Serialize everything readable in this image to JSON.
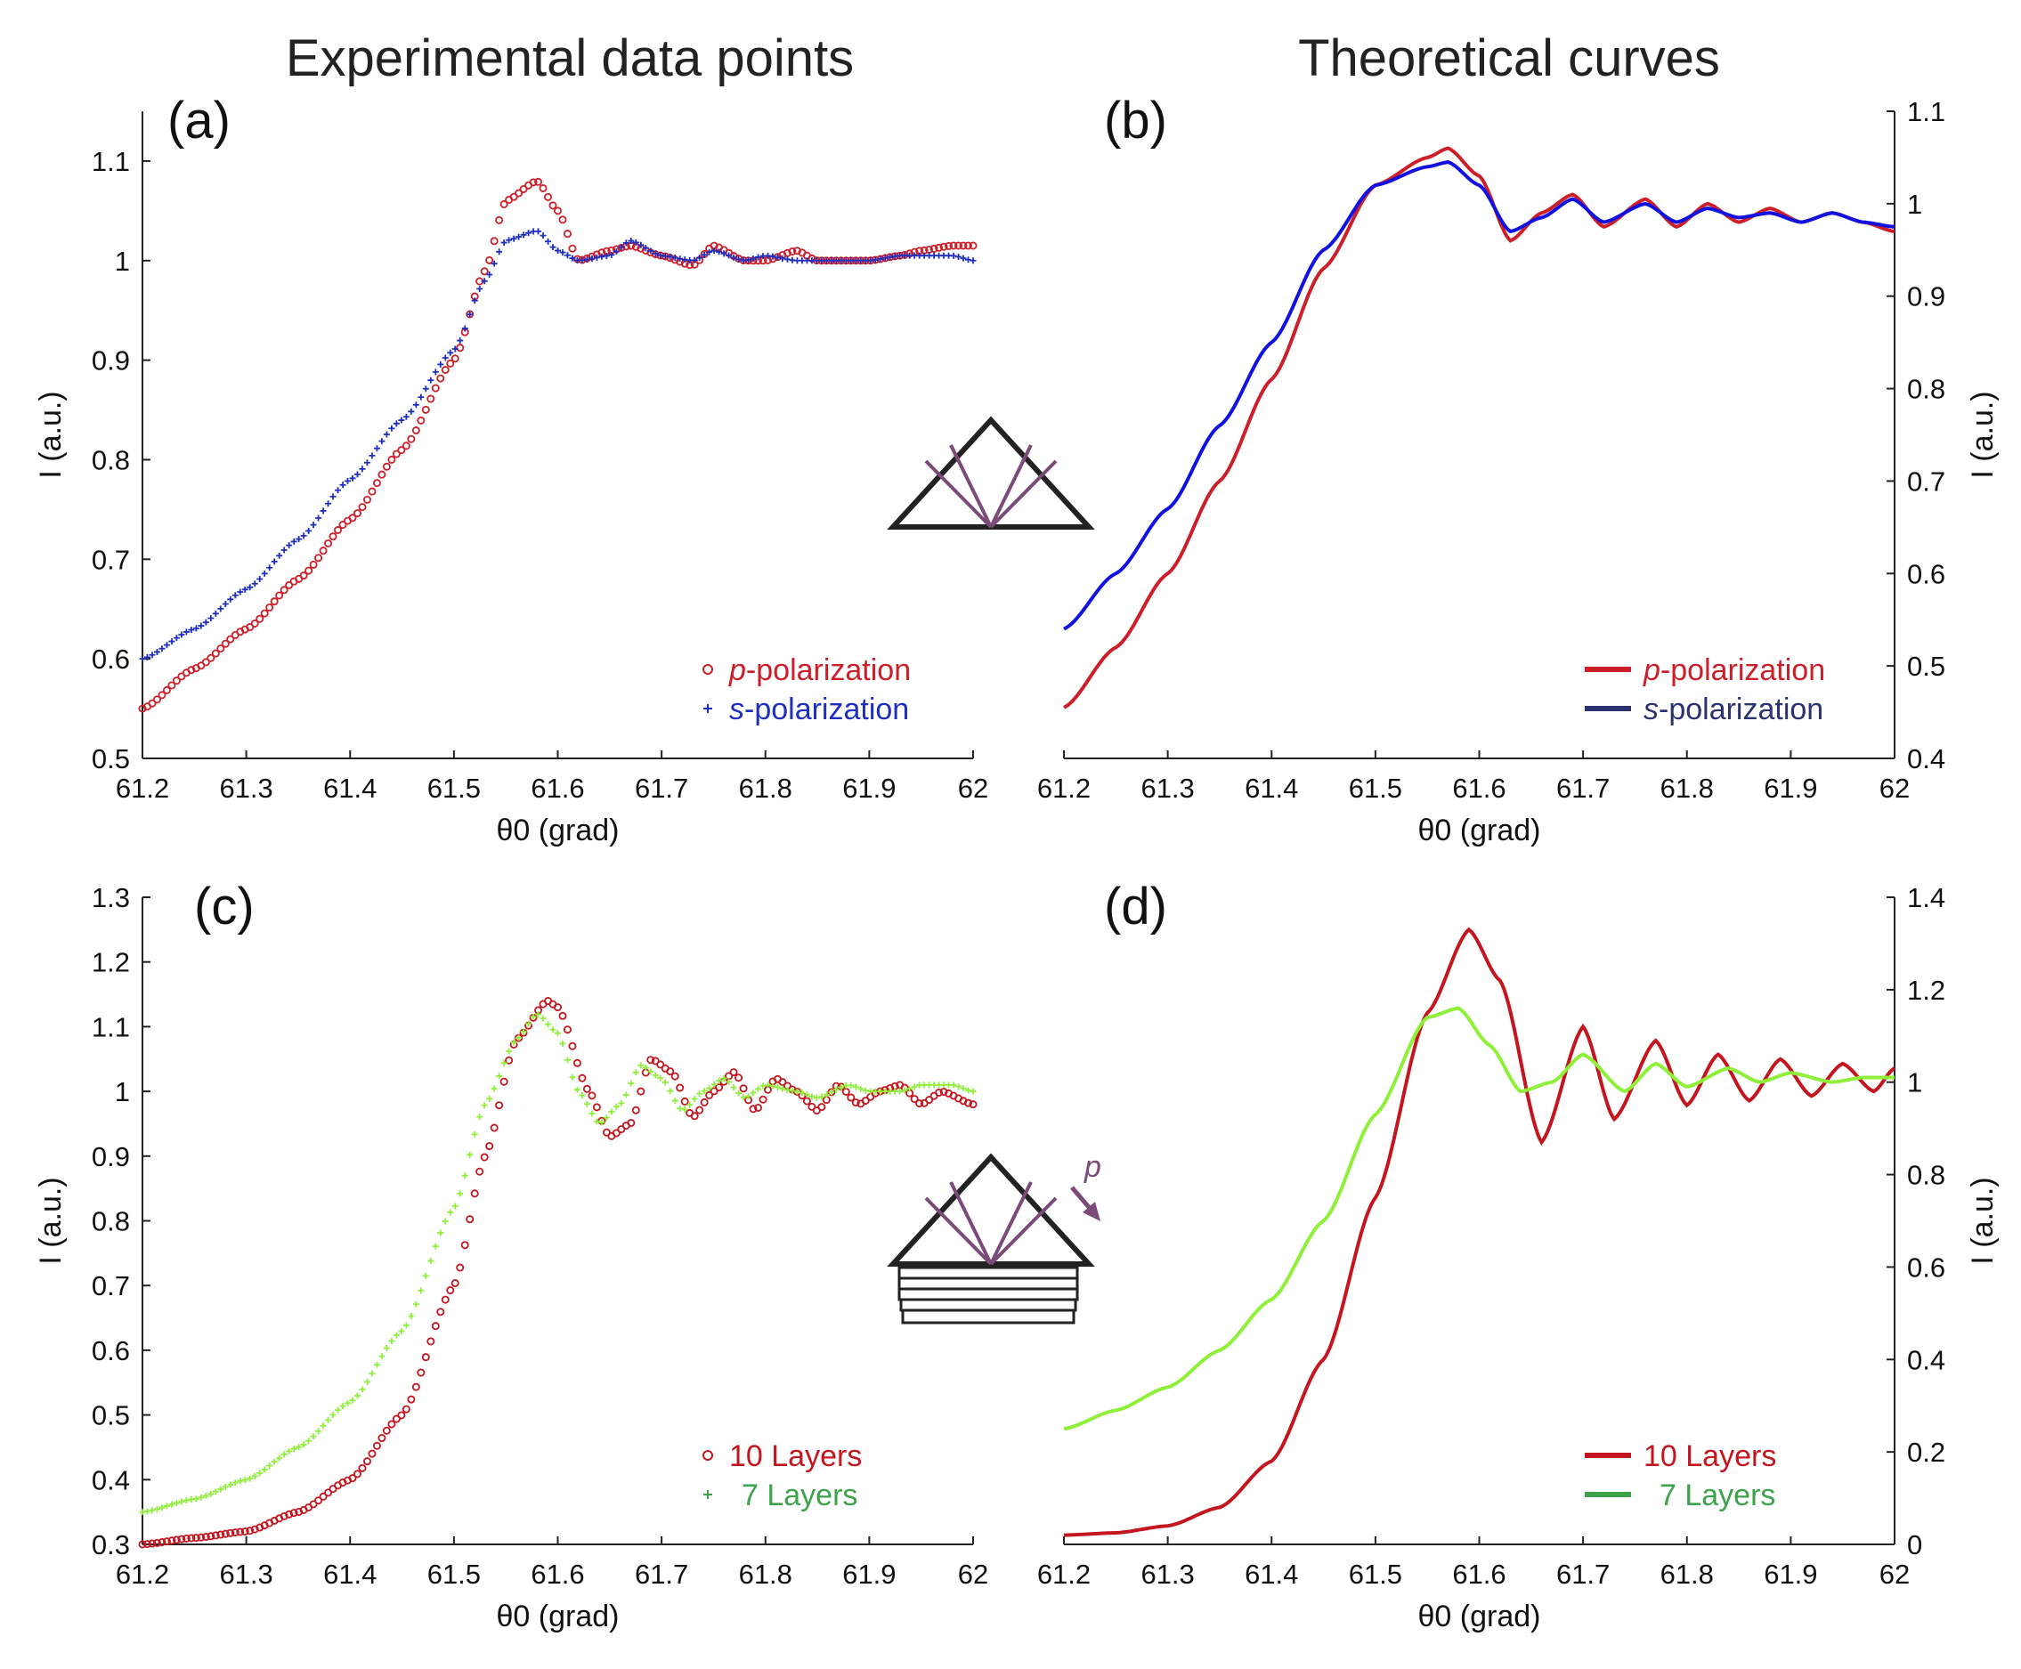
{
  "figure": {
    "left_title": "Experimental data points",
    "right_title": "Theoretical curves"
  },
  "colors": {
    "p_red": "#cc1f2a",
    "s_blue": "#1e2fbf",
    "s_legend": "#2c3270",
    "ten_red": "#c3161f",
    "seven_lime": "#8ff03a",
    "seven_legend": "#3da34a",
    "diagram_arrow": "#7a4a78"
  },
  "chart_data": [
    {
      "id": "a",
      "panel_label": "(a)",
      "type": "scatter",
      "xlabel": "θ0 (grad)",
      "ylabel": "I  (a.u.)",
      "xlim": [
        61.2,
        62
      ],
      "ylim": [
        0.5,
        1.15
      ],
      "xticks": [
        "61.2",
        "61.3",
        "61.4",
        "61.5",
        "61.6",
        "61.7",
        "61.8",
        "61.9",
        "62"
      ],
      "yticks": [
        "0.5",
        "0.6",
        "0.7",
        "0.8",
        "0.9",
        "1",
        "1.1"
      ],
      "legend_position": "bottom-right",
      "series": [
        {
          "name": "p-polarization",
          "italic": "p",
          "rest": "-polarization",
          "marker": "circle",
          "color": "#cc1f2a",
          "x": [
            61.2,
            61.25,
            61.3,
            61.35,
            61.4,
            61.45,
            61.5,
            61.53,
            61.55,
            61.58,
            61.6,
            61.62,
            61.65,
            61.67,
            61.7,
            61.73,
            61.75,
            61.78,
            61.8,
            61.83,
            61.85,
            61.88,
            61.9,
            61.93,
            61.95,
            61.98,
            62.0
          ],
          "y": [
            0.55,
            0.59,
            0.63,
            0.68,
            0.74,
            0.81,
            0.9,
            0.99,
            1.06,
            1.08,
            1.05,
            1.0,
            1.01,
            1.015,
            1.005,
            0.995,
            1.015,
            1.0,
            1.0,
            1.01,
            1.0,
            1.0,
            1.0,
            1.005,
            1.01,
            1.015,
            1.015
          ]
        },
        {
          "name": "s-polarization",
          "italic": "s",
          "rest": "-polarization",
          "marker": "plus",
          "color": "#1e2fbf",
          "x": [
            61.2,
            61.25,
            61.3,
            61.35,
            61.4,
            61.45,
            61.5,
            61.53,
            61.55,
            61.58,
            61.6,
            61.62,
            61.65,
            61.67,
            61.7,
            61.73,
            61.75,
            61.78,
            61.8,
            61.83,
            61.85,
            61.88,
            61.9,
            61.93,
            61.95,
            61.98,
            62.0
          ],
          "y": [
            0.6,
            0.63,
            0.67,
            0.72,
            0.78,
            0.84,
            0.91,
            0.98,
            1.02,
            1.03,
            1.01,
            1.0,
            1.005,
            1.02,
            1.005,
            1.0,
            1.01,
            1.0,
            1.005,
            1.0,
            1.0,
            1.0,
            1.0,
            1.005,
            1.005,
            1.005,
            1.0
          ]
        }
      ]
    },
    {
      "id": "b",
      "panel_label": "(b)",
      "type": "line",
      "xlabel": "θ0 (grad)",
      "ylabel": "I  (a.u.)",
      "xlim": [
        61.2,
        62
      ],
      "ylim": [
        0.4,
        1.1
      ],
      "xticks": [
        "61.2",
        "61.3",
        "61.4",
        "61.5",
        "61.6",
        "61.7",
        "61.8",
        "61.9",
        "62"
      ],
      "yticks": [
        "0.4",
        "0.5",
        "0.6",
        "0.7",
        "0.8",
        "0.9",
        "1",
        "1.1"
      ],
      "y_axis_side": "right",
      "legend_position": "bottom-right",
      "series": [
        {
          "name": "p-polarization",
          "italic": "p",
          "rest": "-polarization",
          "color": "#cc1f2a",
          "legend_color": "#cc1f2a",
          "x": [
            61.2,
            61.25,
            61.3,
            61.35,
            61.4,
            61.45,
            61.5,
            61.55,
            61.57,
            61.6,
            61.63,
            61.66,
            61.69,
            61.72,
            61.76,
            61.79,
            61.82,
            61.85,
            61.88,
            61.91,
            61.94,
            61.97,
            62.0
          ],
          "y": [
            0.455,
            0.52,
            0.6,
            0.7,
            0.81,
            0.93,
            1.02,
            1.05,
            1.06,
            1.03,
            0.96,
            0.99,
            1.01,
            0.975,
            1.005,
            0.975,
            1.0,
            0.98,
            0.995,
            0.98,
            0.99,
            0.98,
            0.97
          ]
        },
        {
          "name": "s-polarization",
          "italic": "s",
          "rest": "-polarization",
          "color": "#1212e0",
          "legend_color": "#2c3270",
          "x": [
            61.2,
            61.25,
            61.3,
            61.35,
            61.4,
            61.45,
            61.5,
            61.55,
            61.57,
            61.6,
            61.63,
            61.66,
            61.69,
            61.72,
            61.76,
            61.79,
            61.82,
            61.85,
            61.88,
            61.91,
            61.94,
            61.97,
            62.0
          ],
          "y": [
            0.54,
            0.6,
            0.67,
            0.76,
            0.85,
            0.95,
            1.02,
            1.04,
            1.045,
            1.02,
            0.97,
            0.985,
            1.005,
            0.98,
            1.0,
            0.98,
            0.995,
            0.985,
            0.99,
            0.98,
            0.99,
            0.98,
            0.975
          ]
        }
      ]
    },
    {
      "id": "c",
      "panel_label": "(c)",
      "type": "scatter",
      "xlabel": "θ0 (grad)",
      "ylabel": "I  (a.u.)",
      "xlim": [
        61.2,
        62
      ],
      "ylim": [
        0.3,
        1.3
      ],
      "xticks": [
        "61.2",
        "61.3",
        "61.4",
        "61.5",
        "61.6",
        "61.7",
        "61.8",
        "61.9",
        "62"
      ],
      "yticks": [
        "0.3",
        "0.4",
        "0.5",
        "0.6",
        "0.7",
        "0.8",
        "0.9",
        "1",
        "1.1",
        "1.2",
        "1.3"
      ],
      "legend_position": "bottom-right",
      "series": [
        {
          "name": "10 Layers",
          "marker": "circle",
          "color": "#c3161f",
          "legend_color": "#c3161f",
          "x": [
            61.2,
            61.25,
            61.3,
            61.35,
            61.4,
            61.45,
            61.5,
            61.53,
            61.56,
            61.59,
            61.6,
            61.63,
            61.65,
            61.67,
            61.69,
            61.71,
            61.73,
            61.75,
            61.77,
            61.79,
            61.81,
            61.83,
            61.85,
            61.87,
            61.89,
            61.91,
            61.93,
            61.95,
            61.97,
            62.0
          ],
          "y": [
            0.3,
            0.31,
            0.32,
            0.35,
            0.4,
            0.5,
            0.7,
            0.9,
            1.08,
            1.14,
            1.13,
            1.0,
            0.93,
            0.95,
            1.05,
            1.03,
            0.96,
            1.0,
            1.03,
            0.97,
            1.02,
            1.0,
            0.97,
            1.01,
            0.98,
            1.0,
            1.01,
            0.98,
            1.0,
            0.98
          ]
        },
        {
          "name": "7 Layers",
          "marker": "plus",
          "color": "#8ff03a",
          "legend_color": "#3da34a",
          "x": [
            61.2,
            61.25,
            61.3,
            61.35,
            61.4,
            61.45,
            61.5,
            61.53,
            61.56,
            61.58,
            61.6,
            61.62,
            61.64,
            61.66,
            61.68,
            61.7,
            61.72,
            61.74,
            61.76,
            61.78,
            61.8,
            61.83,
            61.85,
            61.88,
            61.9,
            61.93,
            61.95,
            61.98,
            62.0
          ],
          "y": [
            0.35,
            0.37,
            0.4,
            0.45,
            0.52,
            0.63,
            0.82,
            0.98,
            1.08,
            1.12,
            1.09,
            1.0,
            0.95,
            0.98,
            1.04,
            1.02,
            0.97,
            1.0,
            1.02,
            0.99,
            1.01,
            1.0,
            0.99,
            1.01,
            1.0,
            1.0,
            1.01,
            1.01,
            1.0
          ]
        }
      ]
    },
    {
      "id": "d",
      "panel_label": "(d)",
      "type": "line",
      "xlabel": "θ0 (grad)",
      "ylabel": "I  (a.u.)",
      "xlim": [
        61.2,
        62
      ],
      "ylim": [
        0,
        1.4
      ],
      "xticks": [
        "61.2",
        "61.3",
        "61.4",
        "61.5",
        "61.6",
        "61.7",
        "61.8",
        "61.9",
        "62"
      ],
      "yticks": [
        "0",
        "0.2",
        "0.4",
        "0.6",
        "0.8",
        "1",
        "1.2",
        "1.4"
      ],
      "y_axis_side": "right",
      "legend_position": "bottom-right",
      "series": [
        {
          "name": "10 Layers",
          "color": "#c3161f",
          "legend_color": "#c3161f",
          "x": [
            61.2,
            61.25,
            61.3,
            61.35,
            61.4,
            61.45,
            61.5,
            61.55,
            61.59,
            61.62,
            61.66,
            61.7,
            61.73,
            61.77,
            61.8,
            61.83,
            61.86,
            61.89,
            61.92,
            61.95,
            61.98,
            62.0
          ],
          "y": [
            0.02,
            0.025,
            0.04,
            0.08,
            0.18,
            0.4,
            0.75,
            1.15,
            1.33,
            1.22,
            0.87,
            1.12,
            0.92,
            1.09,
            0.95,
            1.06,
            0.96,
            1.05,
            0.97,
            1.04,
            0.98,
            1.03
          ]
        },
        {
          "name": "7 Layers",
          "color": "#8ff03a",
          "legend_color": "#3da34a",
          "x": [
            61.2,
            61.25,
            61.3,
            61.35,
            61.4,
            61.45,
            61.5,
            61.55,
            61.58,
            61.61,
            61.64,
            61.67,
            61.7,
            61.74,
            61.77,
            61.8,
            61.84,
            61.87,
            61.9,
            61.94,
            61.97,
            62.0
          ],
          "y": [
            0.25,
            0.29,
            0.34,
            0.42,
            0.53,
            0.7,
            0.93,
            1.14,
            1.16,
            1.08,
            0.98,
            1.0,
            1.06,
            0.98,
            1.04,
            0.99,
            1.03,
            1.0,
            1.02,
            1.0,
            1.01,
            1.01
          ]
        }
      ]
    }
  ]
}
